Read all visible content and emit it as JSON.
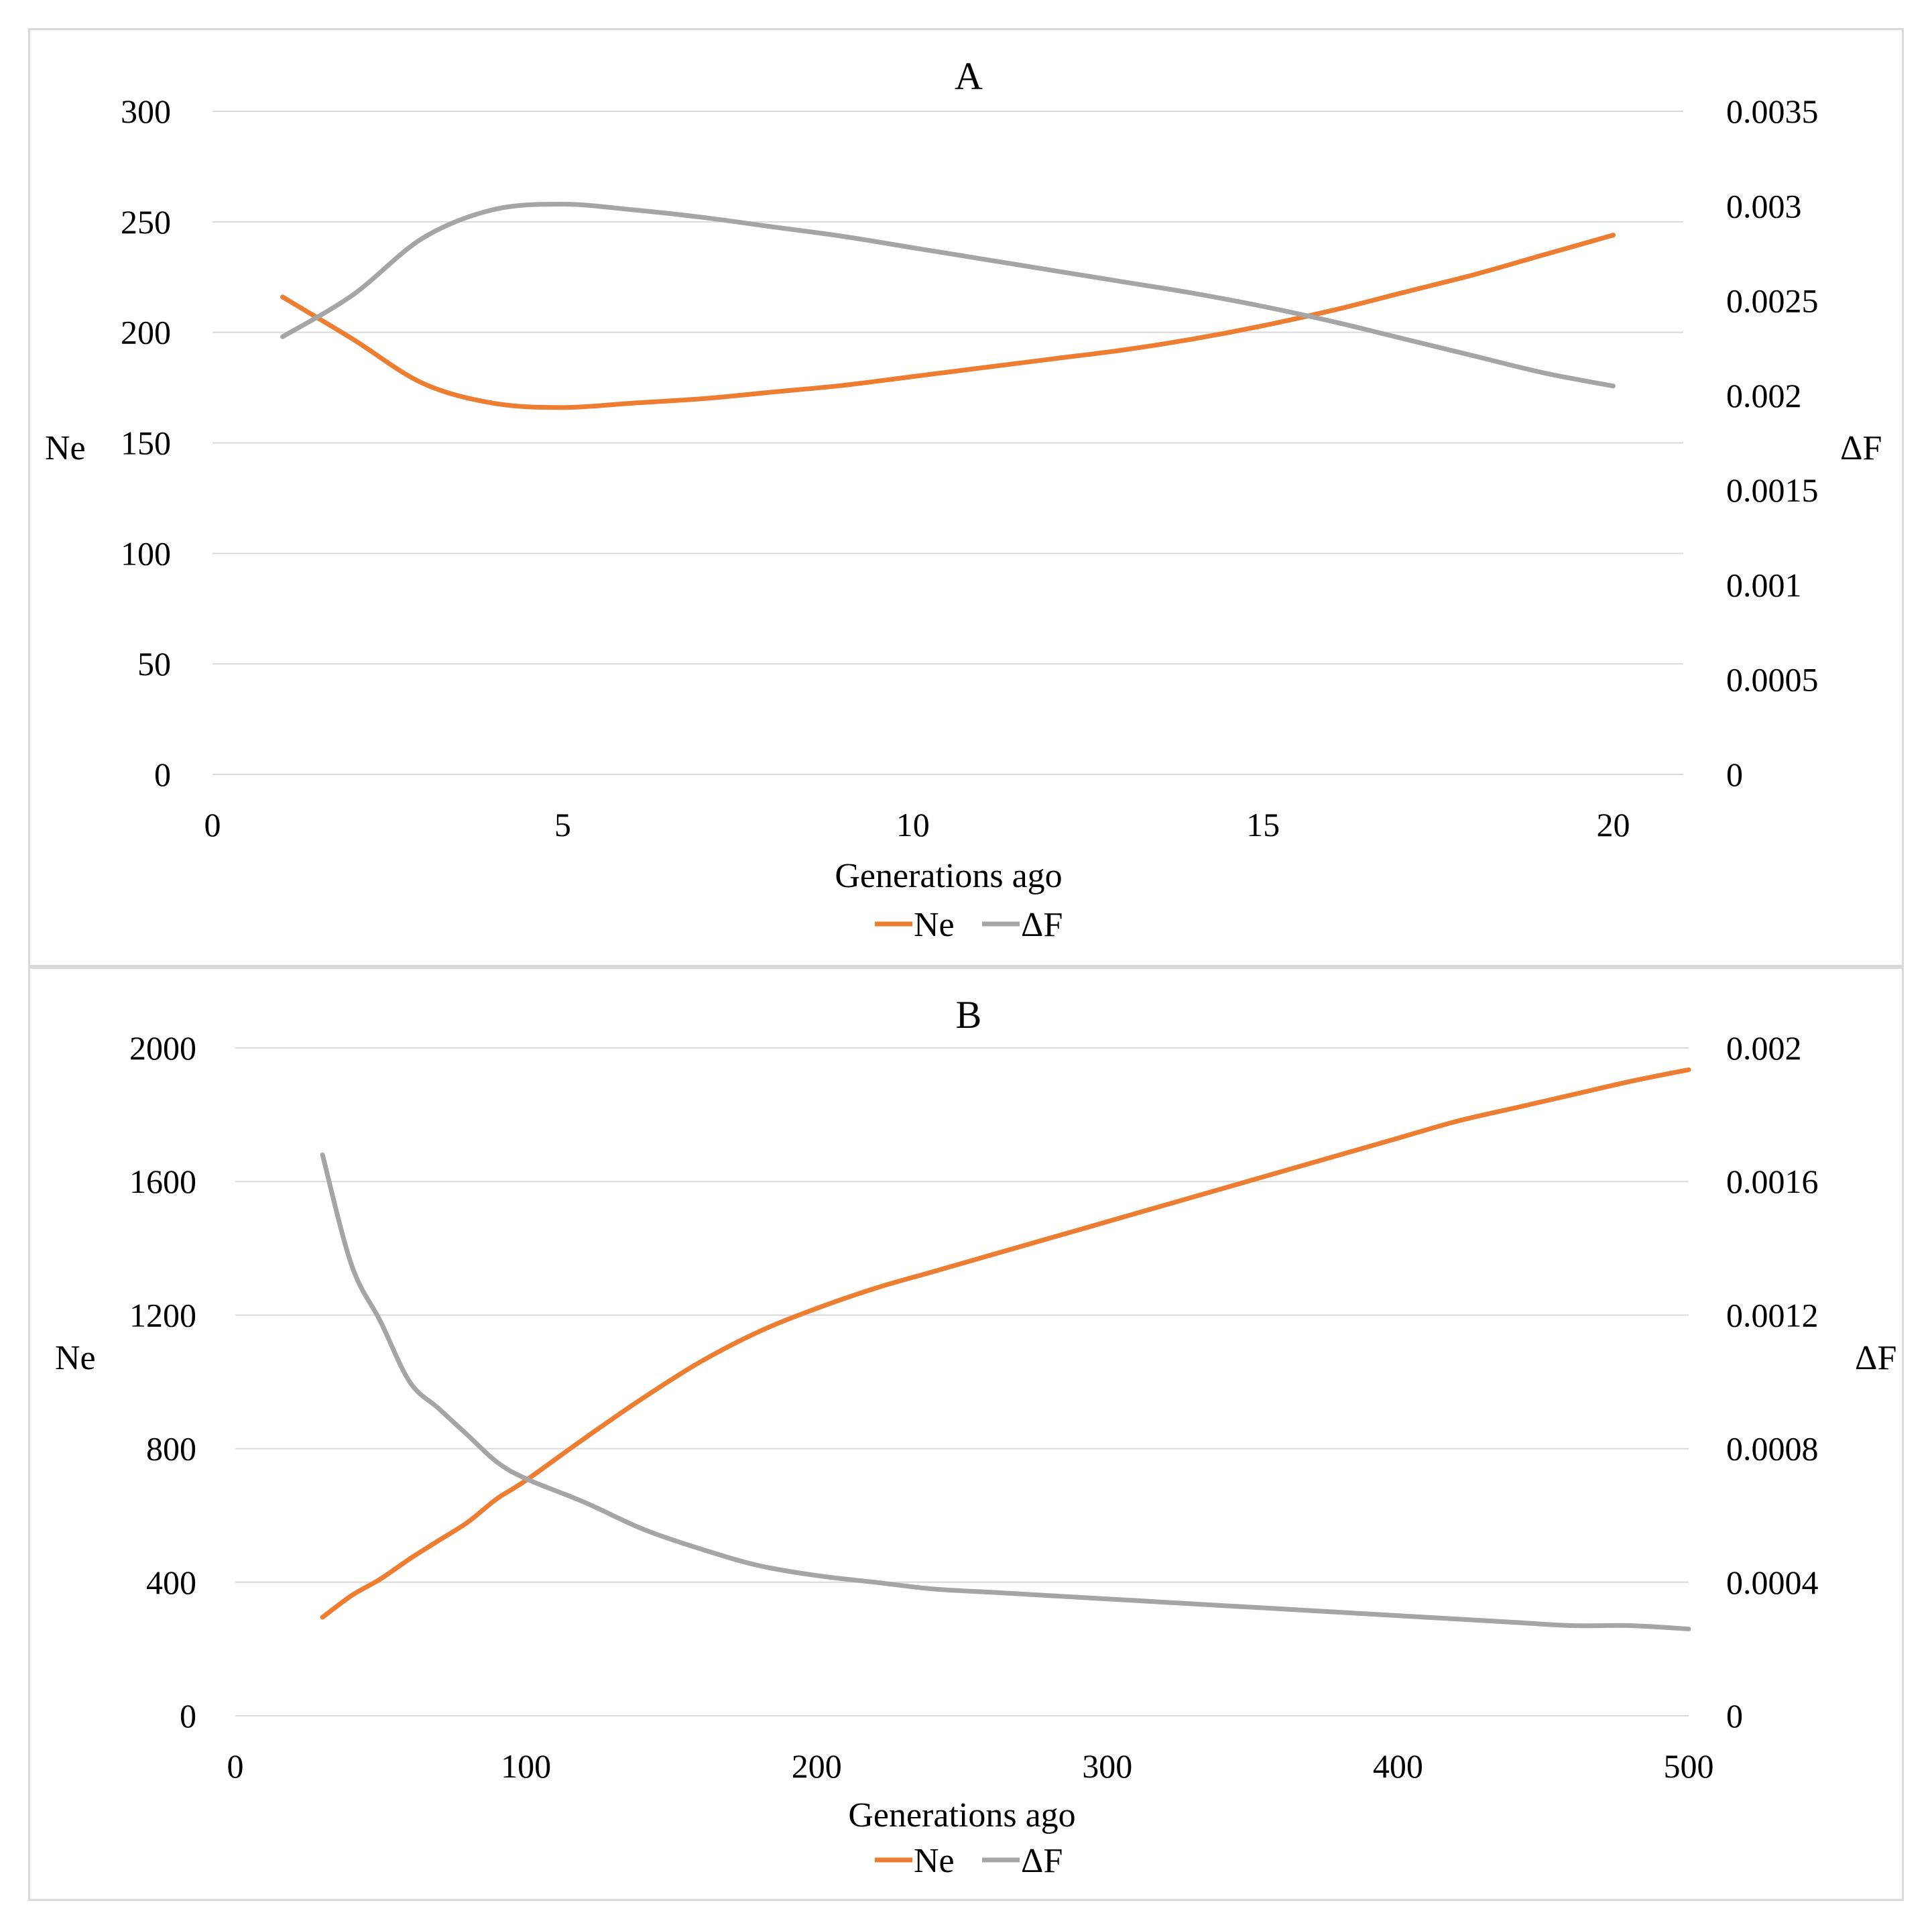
{
  "chart_data": [
    {
      "type": "line",
      "title": "A",
      "xlabel": "Generations ago",
      "ylabel": "Ne",
      "y2label": "ΔF",
      "xlim": [
        0,
        21
      ],
      "x_ticks": [
        "0",
        "5",
        "10",
        "15",
        "20"
      ],
      "ylim": [
        0,
        300
      ],
      "y_ticks": [
        "0",
        "50",
        "100",
        "150",
        "200",
        "250",
        "300"
      ],
      "y2lim": [
        0,
        0.0035
      ],
      "y2_ticks": [
        "0",
        "0.0005",
        "0.001",
        "0.0015",
        "0.002",
        "0.0025",
        "0.003",
        "0.0035"
      ],
      "grid": true,
      "legend": "bottom",
      "series": [
        {
          "name": "Ne",
          "color": "#ED7D31",
          "axis": "left",
          "x": [
            1,
            2,
            3,
            4,
            5,
            6,
            7,
            8,
            9,
            10,
            11,
            12,
            13,
            14,
            15,
            16,
            17,
            18,
            19,
            20
          ],
          "values": [
            216,
            197,
            177,
            168,
            166,
            168,
            170,
            173,
            176,
            180,
            184,
            188,
            192,
            197,
            203,
            210,
            218,
            226,
            235,
            244
          ]
        },
        {
          "name": "ΔF",
          "color": "#A5A5A5",
          "axis": "right",
          "x": [
            1,
            2,
            3,
            4,
            5,
            6,
            7,
            8,
            9,
            10,
            11,
            12,
            13,
            14,
            15,
            16,
            17,
            18,
            19,
            20
          ],
          "values": [
            0.00231,
            0.00253,
            0.00283,
            0.00298,
            0.00301,
            0.00298,
            0.00294,
            0.00289,
            0.00284,
            0.00278,
            0.00272,
            0.00266,
            0.0026,
            0.00254,
            0.00247,
            0.00239,
            0.0023,
            0.00221,
            0.00212,
            0.00205
          ]
        }
      ]
    },
    {
      "type": "line",
      "title": "B",
      "xlabel": "Generations ago",
      "ylabel": "Ne",
      "y2label": "ΔF",
      "xlim": [
        0,
        500
      ],
      "x_ticks": [
        "0",
        "100",
        "200",
        "300",
        "400",
        "500"
      ],
      "ylim": [
        0,
        2000
      ],
      "y_ticks": [
        "0",
        "400",
        "800",
        "1200",
        "1600",
        "2000"
      ],
      "y2lim": [
        0,
        0.002
      ],
      "y2_ticks": [
        "0",
        "0.0004",
        "0.0008",
        "0.0012",
        "0.0016",
        "0.002"
      ],
      "grid": true,
      "legend": "bottom",
      "series": [
        {
          "name": "Ne",
          "color": "#ED7D31",
          "axis": "left",
          "x": [
            30,
            40,
            50,
            60,
            70,
            80,
            90,
            100,
            120,
            140,
            160,
            180,
            200,
            220,
            240,
            260,
            280,
            300,
            320,
            340,
            360,
            380,
            400,
            420,
            440,
            460,
            480,
            500
          ],
          "values": [
            295,
            360,
            410,
            470,
            525,
            580,
            650,
            705,
            830,
            950,
            1060,
            1150,
            1220,
            1280,
            1330,
            1380,
            1430,
            1480,
            1530,
            1580,
            1630,
            1680,
            1730,
            1780,
            1820,
            1860,
            1900,
            1935
          ]
        },
        {
          "name": "ΔF",
          "color": "#A5A5A5",
          "axis": "right",
          "x": [
            30,
            40,
            50,
            60,
            70,
            80,
            90,
            100,
            120,
            140,
            160,
            180,
            200,
            220,
            240,
            260,
            280,
            300,
            320,
            340,
            360,
            380,
            400,
            420,
            440,
            460,
            480,
            500
          ],
          "values": [
            0.00168,
            0.00135,
            0.00118,
            0.001,
            0.00092,
            0.00084,
            0.00076,
            0.00071,
            0.00064,
            0.00056,
            0.0005,
            0.00045,
            0.00042,
            0.0004,
            0.00038,
            0.00037,
            0.00036,
            0.00035,
            0.00034,
            0.00033,
            0.00032,
            0.00031,
            0.0003,
            0.00029,
            0.00028,
            0.00027,
            0.00027,
            0.00026
          ]
        }
      ]
    }
  ]
}
